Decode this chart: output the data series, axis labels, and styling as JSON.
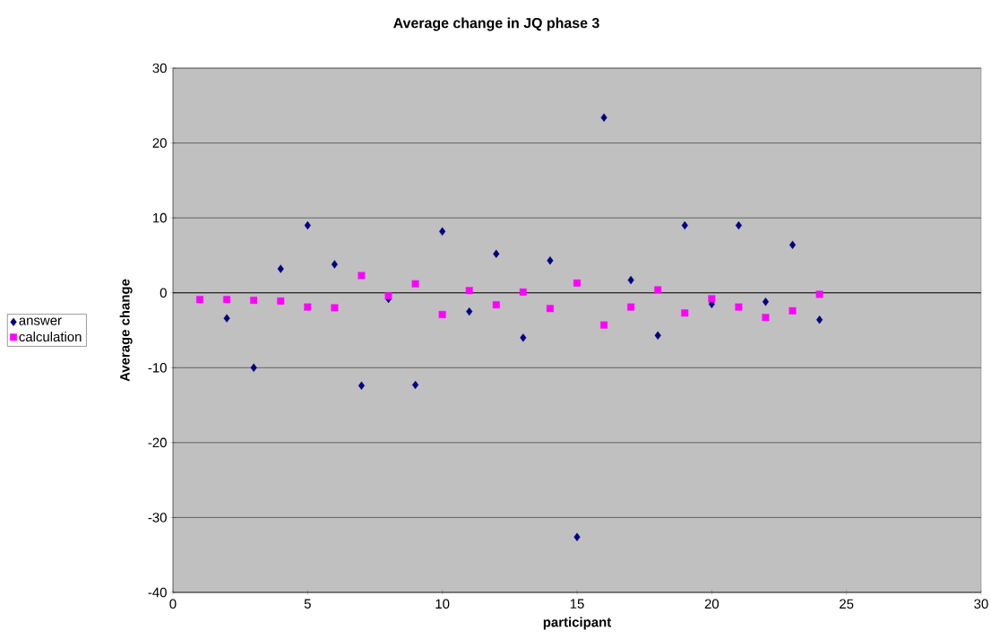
{
  "chart_data": {
    "type": "scatter",
    "title": "Average change in JQ  phase 3",
    "xlabel": "participant",
    "ylabel": "Average change",
    "x": [
      1,
      2,
      3,
      4,
      5,
      6,
      7,
      8,
      9,
      10,
      11,
      12,
      13,
      14,
      15,
      16,
      17,
      18,
      19,
      20,
      21,
      22,
      23,
      24
    ],
    "series": [
      {
        "name": "answer",
        "color": "#000080",
        "marker": "diamond",
        "values": [
          null,
          -3.4,
          -10.0,
          3.2,
          9.0,
          3.8,
          -12.4,
          -0.8,
          -12.3,
          8.2,
          -2.5,
          5.2,
          -6.0,
          4.3,
          -32.6,
          23.4,
          1.7,
          -5.7,
          9.0,
          -1.5,
          9.0,
          -1.2,
          6.4,
          -3.6
        ]
      },
      {
        "name": "calculation",
        "color": "#ff00ff",
        "marker": "square",
        "values": [
          -0.9,
          -0.9,
          -1.0,
          -1.1,
          -1.9,
          -2.0,
          2.3,
          -0.4,
          1.2,
          -2.9,
          0.3,
          -1.6,
          0.1,
          -2.1,
          1.3,
          -4.3,
          -1.9,
          0.4,
          -2.7,
          -0.8,
          -1.9,
          -3.3,
          -2.4,
          -0.2
        ]
      }
    ],
    "xlim": [
      0,
      30
    ],
    "xticks": [
      0,
      5,
      10,
      15,
      20,
      25,
      30
    ],
    "ylim": [
      -40,
      30
    ],
    "yticks": [
      -40,
      -30,
      -20,
      -10,
      0,
      10,
      20,
      30
    ],
    "ref_lines": [
      {
        "axis": "y",
        "value": 0
      }
    ],
    "grid": "y",
    "legend": "left"
  }
}
